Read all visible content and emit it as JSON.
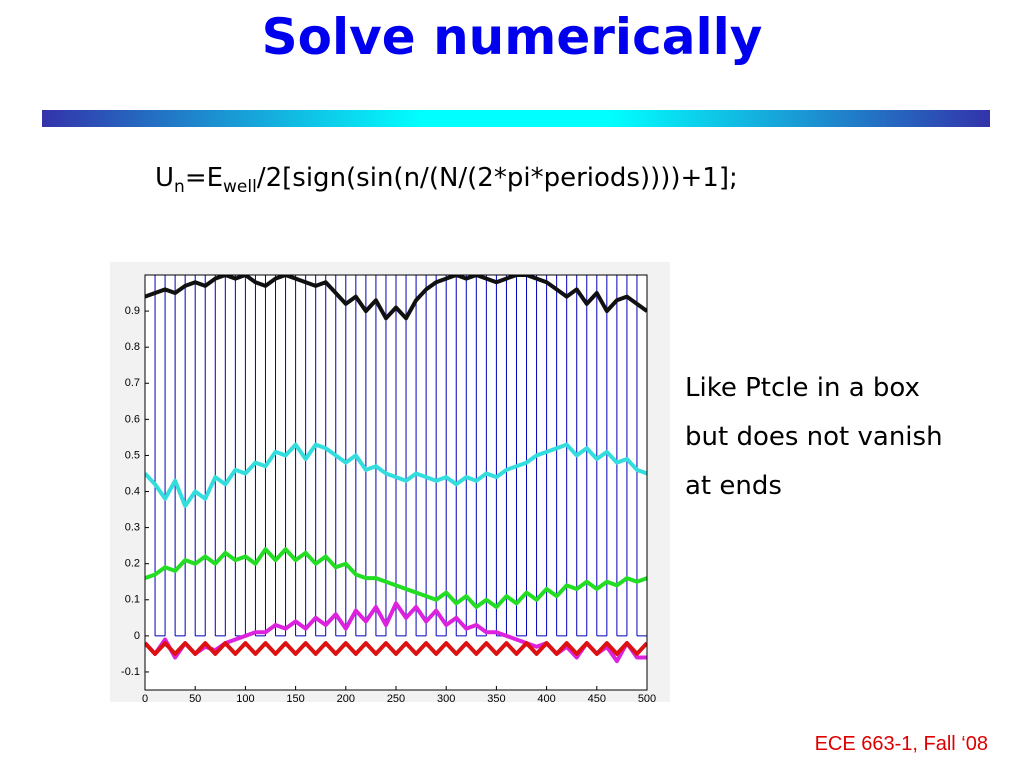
{
  "title": "Solve numerically",
  "formula": {
    "u": "U",
    "u_sub": "n",
    "eq": "=E",
    "e_sub": "well",
    "rest": "/2[sign(sin(n/(N/(2*pi*periods))))+1];"
  },
  "body": [
    "Like Ptcle in a box",
    "but does not vanish",
    "at ends"
  ],
  "footer": "ECE 663-1, Fall ‘08",
  "chart_data": {
    "type": "line",
    "x": [
      0,
      10,
      20,
      30,
      40,
      50,
      60,
      70,
      80,
      90,
      100,
      110,
      120,
      130,
      140,
      150,
      160,
      170,
      180,
      190,
      200,
      210,
      220,
      230,
      240,
      250,
      260,
      270,
      280,
      290,
      300,
      310,
      320,
      330,
      340,
      350,
      360,
      370,
      380,
      390,
      400,
      410,
      420,
      430,
      440,
      450,
      460,
      470,
      480,
      490,
      500
    ],
    "xlim": [
      0,
      500
    ],
    "xticks": [
      0,
      50,
      100,
      150,
      200,
      250,
      300,
      350,
      400,
      450,
      500
    ],
    "ylim": [
      -0.15,
      1.0
    ],
    "yticks": [
      -0.1,
      0,
      0.1,
      0.2,
      0.3,
      0.4,
      0.5,
      0.6,
      0.7,
      0.8,
      0.9
    ],
    "series": [
      {
        "color": "#0000bb",
        "linewidth": 1,
        "drawstyle": "steps-post",
        "values": [
          1,
          0,
          1,
          0,
          1,
          0,
          1,
          0,
          1,
          0,
          1,
          0,
          1,
          0,
          1,
          0,
          1,
          0,
          1,
          0,
          1,
          0,
          1,
          0,
          1,
          0,
          1,
          0,
          1,
          0,
          1,
          0,
          1,
          0,
          1,
          0,
          1,
          0,
          1,
          0,
          1,
          0,
          1,
          0,
          1,
          0,
          1,
          0,
          1,
          0,
          1
        ]
      },
      {
        "color": "#111111",
        "linewidth": 4,
        "values": [
          0.94,
          0.95,
          0.96,
          0.95,
          0.97,
          0.98,
          0.97,
          0.99,
          1.0,
          0.99,
          1.0,
          0.98,
          0.97,
          0.99,
          1.0,
          0.99,
          0.98,
          0.97,
          0.98,
          0.95,
          0.92,
          0.94,
          0.9,
          0.93,
          0.88,
          0.91,
          0.88,
          0.93,
          0.96,
          0.98,
          0.99,
          1.0,
          0.99,
          1.0,
          0.99,
          0.98,
          0.99,
          1.0,
          1.0,
          0.99,
          0.98,
          0.96,
          0.94,
          0.96,
          0.92,
          0.95,
          0.9,
          0.93,
          0.94,
          0.92,
          0.9
        ]
      },
      {
        "color": "#33dddd",
        "linewidth": 4,
        "values": [
          0.45,
          0.42,
          0.38,
          0.43,
          0.36,
          0.4,
          0.38,
          0.44,
          0.42,
          0.46,
          0.45,
          0.48,
          0.47,
          0.51,
          0.5,
          0.53,
          0.49,
          0.53,
          0.52,
          0.5,
          0.48,
          0.5,
          0.46,
          0.47,
          0.45,
          0.44,
          0.43,
          0.45,
          0.44,
          0.43,
          0.44,
          0.42,
          0.44,
          0.43,
          0.45,
          0.44,
          0.46,
          0.47,
          0.48,
          0.5,
          0.51,
          0.52,
          0.53,
          0.5,
          0.52,
          0.49,
          0.51,
          0.48,
          0.49,
          0.46,
          0.45
        ]
      },
      {
        "color": "#22dd22",
        "linewidth": 4,
        "values": [
          0.16,
          0.17,
          0.19,
          0.18,
          0.21,
          0.2,
          0.22,
          0.2,
          0.23,
          0.21,
          0.22,
          0.2,
          0.24,
          0.21,
          0.24,
          0.21,
          0.23,
          0.2,
          0.22,
          0.19,
          0.2,
          0.17,
          0.16,
          0.16,
          0.15,
          0.14,
          0.13,
          0.12,
          0.11,
          0.1,
          0.12,
          0.09,
          0.11,
          0.08,
          0.1,
          0.08,
          0.11,
          0.09,
          0.12,
          0.1,
          0.13,
          0.11,
          0.14,
          0.13,
          0.15,
          0.13,
          0.15,
          0.14,
          0.16,
          0.15,
          0.16
        ]
      },
      {
        "color": "#dd22dd",
        "linewidth": 4,
        "values": [
          -0.02,
          -0.05,
          -0.01,
          -0.06,
          -0.02,
          -0.05,
          -0.03,
          -0.04,
          -0.02,
          -0.01,
          0.0,
          0.01,
          0.01,
          0.03,
          0.02,
          0.04,
          0.02,
          0.05,
          0.03,
          0.06,
          0.02,
          0.07,
          0.04,
          0.08,
          0.03,
          0.09,
          0.05,
          0.08,
          0.04,
          0.07,
          0.03,
          0.05,
          0.02,
          0.03,
          0.01,
          0.01,
          0.0,
          -0.01,
          -0.02,
          -0.03,
          -0.02,
          -0.05,
          -0.03,
          -0.06,
          -0.02,
          -0.05,
          -0.03,
          -0.07,
          -0.02,
          -0.06,
          -0.06
        ]
      },
      {
        "color": "#dd1111",
        "linewidth": 4,
        "values": [
          -0.02,
          -0.05,
          -0.02,
          -0.05,
          -0.02,
          -0.05,
          -0.02,
          -0.05,
          -0.02,
          -0.05,
          -0.02,
          -0.05,
          -0.02,
          -0.05,
          -0.02,
          -0.05,
          -0.02,
          -0.05,
          -0.02,
          -0.05,
          -0.02,
          -0.05,
          -0.02,
          -0.05,
          -0.02,
          -0.05,
          -0.02,
          -0.05,
          -0.02,
          -0.05,
          -0.02,
          -0.05,
          -0.02,
          -0.05,
          -0.02,
          -0.05,
          -0.02,
          -0.05,
          -0.02,
          -0.05,
          -0.02,
          -0.05,
          -0.02,
          -0.05,
          -0.02,
          -0.05,
          -0.02,
          -0.05,
          -0.02,
          -0.05,
          -0.02
        ]
      }
    ]
  }
}
